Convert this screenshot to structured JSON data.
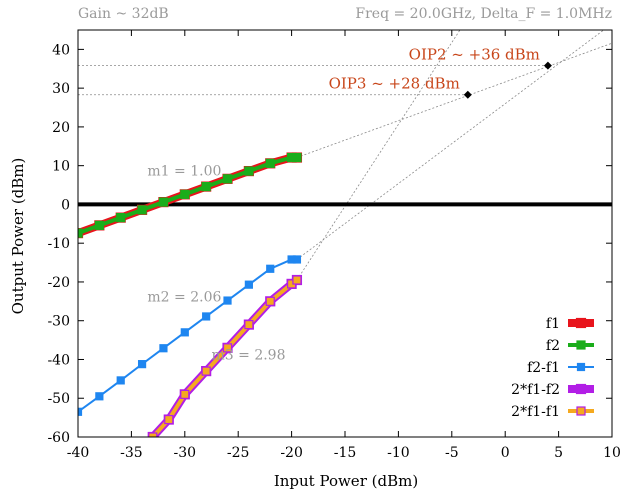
{
  "chart_data": {
    "type": "line",
    "header_left": "Gain ~ 32dB",
    "header_right": "Freq = 20.0GHz, Delta_F = 1.0MHz",
    "xlabel": "Input Power (dBm)",
    "ylabel": "Output Power (dBm)",
    "xlim": [
      -40,
      10
    ],
    "ylim": [
      -60,
      45
    ],
    "xticks": [
      -40,
      -35,
      -30,
      -25,
      -20,
      -15,
      -10,
      -5,
      0,
      5,
      10
    ],
    "yticks": [
      -60,
      -50,
      -40,
      -30,
      -20,
      -10,
      0,
      10,
      20,
      30,
      40
    ],
    "grid": false,
    "legend_position": "bottom-right",
    "series": [
      {
        "name": "f1",
        "color": "#e8141c",
        "outline": "#e8141c",
        "fill": "#e8141c",
        "width": 8,
        "x": [
          -40,
          -38,
          -36,
          -34,
          -32,
          -30,
          -28,
          -26,
          -24,
          -22,
          -20,
          -19.5
        ],
        "y": [
          -7.4,
          -5.4,
          -3.4,
          -1.4,
          0.6,
          2.6,
          4.6,
          6.6,
          8.6,
          10.6,
          12.1,
          12.1
        ]
      },
      {
        "name": "f2",
        "color": "#1aad1a",
        "outline": "#1aad1a",
        "fill": "#1aad1a",
        "width": 4,
        "x": [
          -40,
          -38,
          -36,
          -34,
          -32,
          -30,
          -28,
          -26,
          -24,
          -22,
          -20,
          -19.5
        ],
        "y": [
          -7.4,
          -5.4,
          -3.4,
          -1.4,
          0.6,
          2.6,
          4.6,
          6.6,
          8.6,
          10.6,
          12.1,
          12.1
        ]
      },
      {
        "name": "f2-f1",
        "color": "#1f86f0",
        "outline": "#1f86f0",
        "fill": "#1f86f0",
        "width": 2,
        "x": [
          -40,
          -38,
          -36,
          -34,
          -32,
          -30,
          -28,
          -26,
          -24,
          -22,
          -20,
          -19.5
        ],
        "y": [
          -53.5,
          -49.5,
          -45.4,
          -41.2,
          -37.1,
          -33.0,
          -28.9,
          -24.8,
          -20.7,
          -16.6,
          -14.2,
          -14.2
        ]
      },
      {
        "name": "2*f1-f2",
        "color": "#b21ee6",
        "outline": "#b21ee6",
        "fill": "#b21ee6",
        "width": 8,
        "x": [
          -33,
          -31.5,
          -30,
          -28,
          -26,
          -24,
          -22,
          -20,
          -19.5
        ],
        "y": [
          -60,
          -55.5,
          -49.0,
          -43.0,
          -37.0,
          -31.0,
          -25.0,
          -20.5,
          -19.5
        ]
      },
      {
        "name": "2*f1-f1",
        "color": "#f5a91f",
        "outline": "#b21ee6",
        "fill": "#f5a91f",
        "width": 4,
        "x": [
          -33,
          -31.5,
          -30,
          -28,
          -26,
          -24,
          -22,
          -20,
          -19.5
        ],
        "y": [
          -60,
          -55.5,
          -49.0,
          -43.0,
          -37.0,
          -31.0,
          -25.0,
          -20.5,
          -19.5
        ]
      }
    ],
    "extrapolations": [
      {
        "x": [
          -19.5,
          10
        ],
        "y": [
          12.1,
          41.6
        ]
      },
      {
        "x": [
          -19.5,
          10
        ],
        "y": [
          -14.2,
          46.6
        ]
      },
      {
        "x": [
          -19.5,
          -4
        ],
        "y": [
          -19.5,
          46.0
        ]
      }
    ],
    "zero_line": 0,
    "intercepts": [
      {
        "label": "OIP2 ~ +36 dBm",
        "x": 4.0,
        "y": 35.8
      },
      {
        "label": "OIP3 ~ +28 dBm",
        "x": -3.5,
        "y": 28.3
      }
    ],
    "slopes": [
      {
        "label": "m1 = 1.00",
        "x": -33.5,
        "y": 7.5
      },
      {
        "label": "m2 = 2.06",
        "x": -33.5,
        "y": -25.0
      },
      {
        "label": "m3 = 2.98",
        "x": -27.5,
        "y": -40.0
      }
    ]
  }
}
